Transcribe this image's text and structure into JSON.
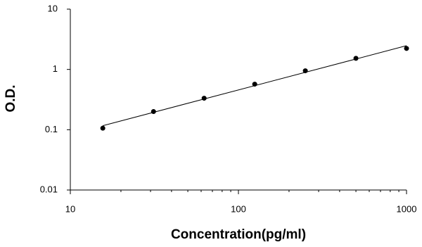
{
  "chart_data": {
    "type": "scatter",
    "x_label": "Concentration(pg/ml)",
    "y_label": "O.D.",
    "x": [
      15.6,
      31.25,
      62.5,
      125,
      250,
      500,
      1000
    ],
    "series": [
      {
        "name": "O.D.",
        "color": "#000000",
        "values": [
          0.106,
          0.2,
          0.333,
          0.57,
          0.95,
          1.53,
          2.23
        ]
      }
    ],
    "xlim": [
      10,
      1000
    ],
    "xticks": [
      10,
      100,
      1000
    ],
    "ylim": [
      0.01,
      10
    ],
    "yticks": [
      0.01,
      0.1,
      1,
      10
    ],
    "xscale": "log",
    "yscale": "log",
    "x_minor_ticks": true,
    "trendline": "power",
    "grid": false
  }
}
